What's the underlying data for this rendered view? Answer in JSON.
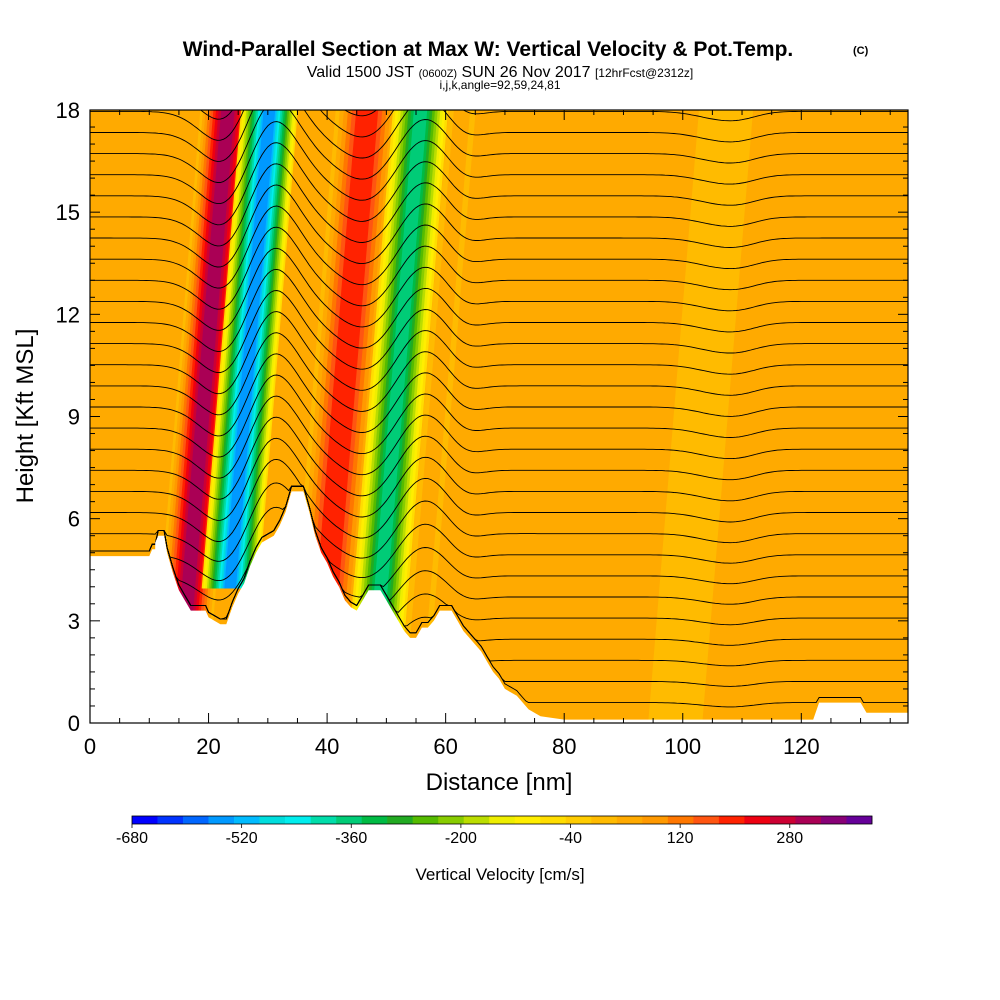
{
  "title": {
    "main": "Wind-Parallel Section at Max W: Vertical Velocity & Pot.Temp.",
    "copyright": "(C)",
    "line2_prefix": "Valid 1500 JST",
    "line2_utc": "(0600Z)",
    "line2_date": "SUN 26 Nov 2017",
    "line2_fcst": "[12hrFcst@2312z]",
    "line3": "i,j,k,angle=92,59,24,81"
  },
  "chart_data": {
    "type": "heatmap",
    "xlabel": "Distance [nm]",
    "ylabel": "Height [Kft MSL]",
    "xlim": [
      0,
      138
    ],
    "ylim": [
      0,
      18
    ],
    "x_ticks": [
      0,
      20,
      40,
      60,
      80,
      100,
      120
    ],
    "y_ticks": [
      0,
      3,
      6,
      9,
      12,
      15,
      18
    ],
    "colorbar": {
      "label": "Vertical Velocity [cm/s]",
      "min": -680,
      "max": 400,
      "step": 40,
      "tick_values": [
        -680,
        -520,
        -360,
        -200,
        -40,
        120,
        280
      ],
      "colors": [
        "#0000ff",
        "#0033ff",
        "#0066ff",
        "#0099ff",
        "#00bbff",
        "#00dddd",
        "#00eeee",
        "#00ddaa",
        "#00cc77",
        "#00bb44",
        "#22aa22",
        "#55bb00",
        "#88cc00",
        "#bbdd00",
        "#eeee00",
        "#ffee00",
        "#ffdd00",
        "#ffcc00",
        "#ffbb00",
        "#ffaa00",
        "#ff9900",
        "#ff7700",
        "#ff5511",
        "#ff2200",
        "#ee0011",
        "#cc0033",
        "#aa0055",
        "#880077",
        "#660099"
      ]
    },
    "terrain_kft": [
      [
        0,
        4.9
      ],
      [
        10,
        4.9
      ],
      [
        10.5,
        5.1
      ],
      [
        11,
        5.1
      ],
      [
        11,
        5.3
      ],
      [
        11.5,
        5.5
      ],
      [
        12.5,
        5.5
      ],
      [
        13,
        5
      ],
      [
        14,
        4.4
      ],
      [
        15,
        3.9
      ],
      [
        16,
        3.6
      ],
      [
        17,
        3.3
      ],
      [
        19.5,
        3.3
      ],
      [
        20,
        3.1
      ],
      [
        22,
        2.9
      ],
      [
        23,
        2.9
      ],
      [
        24,
        3.4
      ],
      [
        25,
        3.8
      ],
      [
        26,
        4.1
      ],
      [
        27,
        4.6
      ],
      [
        28,
        5
      ],
      [
        29,
        5.3
      ],
      [
        30,
        5.4
      ],
      [
        31,
        5.5
      ],
      [
        32,
        5.8
      ],
      [
        33,
        6.2
      ],
      [
        34,
        6.8
      ],
      [
        36,
        6.8
      ],
      [
        37,
        6.2
      ],
      [
        38,
        5.5
      ],
      [
        39,
        5
      ],
      [
        40,
        4.7
      ],
      [
        41,
        4.3
      ],
      [
        42,
        4
      ],
      [
        43,
        3.6
      ],
      [
        44,
        3.4
      ],
      [
        45,
        3.3
      ],
      [
        46,
        3.6
      ],
      [
        47,
        3.9
      ],
      [
        49,
        3.9
      ],
      [
        50,
        3.6
      ],
      [
        51,
        3.3
      ],
      [
        52,
        3
      ],
      [
        53,
        2.7
      ],
      [
        54,
        2.5
      ],
      [
        55,
        2.5
      ],
      [
        56,
        2.8
      ],
      [
        57,
        2.8
      ],
      [
        58,
        3
      ],
      [
        59,
        3.3
      ],
      [
        61,
        3.3
      ],
      [
        62,
        3
      ],
      [
        63,
        2.7
      ],
      [
        64,
        2.5
      ],
      [
        66,
        2.1
      ],
      [
        67,
        1.8
      ],
      [
        68,
        1.5
      ],
      [
        69,
        1.3
      ],
      [
        70,
        1
      ],
      [
        72,
        0.8
      ],
      [
        74,
        0.4
      ],
      [
        76,
        0.2
      ],
      [
        80,
        0.1
      ],
      [
        84,
        0.1
      ],
      [
        90,
        0.1
      ],
      [
        100,
        0.1
      ],
      [
        110,
        0.1
      ],
      [
        118,
        0.1
      ],
      [
        122,
        0.1
      ],
      [
        123,
        0.6
      ],
      [
        130,
        0.6
      ],
      [
        131,
        0.3
      ],
      [
        132,
        0.3
      ],
      [
        138,
        0.3
      ]
    ],
    "series": [
      {
        "x_nm": 23.5,
        "width_nm": 5.5,
        "w_cm_s": 360
      },
      {
        "x_nm": 30.5,
        "width_nm": 5.5,
        "w_cm_s": -560
      },
      {
        "x_nm": 47,
        "width_nm": 6.5,
        "w_cm_s": 260
      },
      {
        "x_nm": 56,
        "width_nm": 5.5,
        "w_cm_s": -360
      },
      {
        "x_nm": 63,
        "width_nm": 3.5,
        "w_cm_s": 80
      },
      {
        "x_nm": 106,
        "width_nm": 5,
        "w_cm_s": 60
      },
      {
        "x_nm": 110,
        "width_nm": 4,
        "w_cm_s": 40
      }
    ]
  }
}
